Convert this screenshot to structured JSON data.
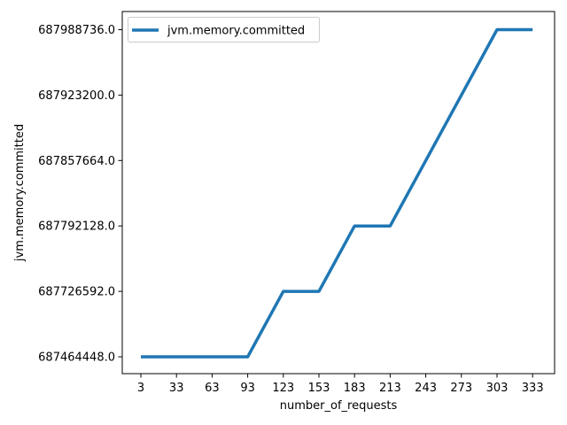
{
  "chart_data": {
    "type": "line",
    "xlabel": "number_of_requests",
    "ylabel": "jvm.memory.committed",
    "x": [
      3,
      33,
      63,
      93,
      123,
      153,
      183,
      213,
      243,
      273,
      303,
      333
    ],
    "y_tick_labels": [
      "687464448.0",
      "687726592.0",
      "687792128.0",
      "687857664.0",
      "687923200.0",
      "687988736.0"
    ],
    "series": [
      {
        "name": "jvm.memory.committed",
        "color": "#1f77b4",
        "y": [
          "687464448.0",
          "687464448.0",
          "687464448.0",
          "687464448.0",
          "687726592.0",
          "687726592.0",
          "687792128.0",
          "687792128.0",
          "687857664.0",
          "687923200.0",
          "687988736.0",
          "687988736.0"
        ]
      }
    ],
    "legend": {
      "position": "top-left"
    },
    "grid": false
  }
}
